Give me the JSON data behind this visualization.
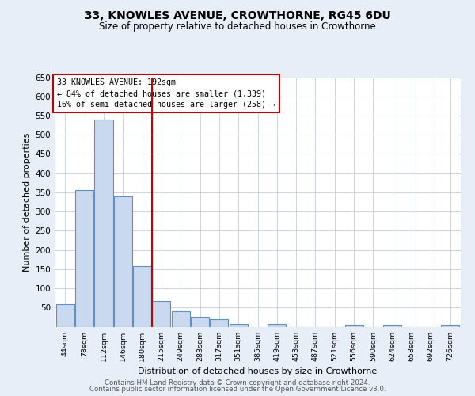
{
  "title": "33, KNOWLES AVENUE, CROWTHORNE, RG45 6DU",
  "subtitle": "Size of property relative to detached houses in Crowthorne",
  "xlabel": "Distribution of detached houses by size in Crowthorne",
  "ylabel": "Number of detached properties",
  "bar_labels": [
    "44sqm",
    "78sqm",
    "112sqm",
    "146sqm",
    "180sqm",
    "215sqm",
    "249sqm",
    "283sqm",
    "317sqm",
    "351sqm",
    "385sqm",
    "419sqm",
    "453sqm",
    "487sqm",
    "521sqm",
    "556sqm",
    "590sqm",
    "624sqm",
    "658sqm",
    "692sqm",
    "726sqm"
  ],
  "bar_values": [
    58,
    355,
    540,
    340,
    158,
    68,
    40,
    25,
    20,
    8,
    0,
    8,
    0,
    0,
    0,
    5,
    0,
    5,
    0,
    0,
    5
  ],
  "bar_color": "#c9d9ef",
  "bar_edgecolor": "#6090c0",
  "vline_x": 4.5,
  "vline_color": "#cc0000",
  "annotation_box_text": "33 KNOWLES AVENUE: 192sqm\n← 84% of detached houses are smaller (1,339)\n16% of semi-detached houses are larger (258) →",
  "annotation_box_color": "#cc0000",
  "ylim": [
    0,
    650
  ],
  "yticks": [
    0,
    50,
    100,
    150,
    200,
    250,
    300,
    350,
    400,
    450,
    500,
    550,
    600,
    650
  ],
  "footer_line1": "Contains HM Land Registry data © Crown copyright and database right 2024.",
  "footer_line2": "Contains public sector information licensed under the Open Government Licence v3.0.",
  "bg_color": "#e8eef8",
  "plot_bg_color": "#ffffff",
  "grid_color": "#c0cce0"
}
